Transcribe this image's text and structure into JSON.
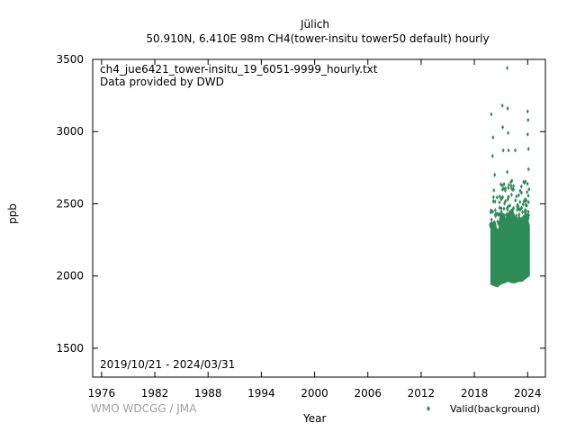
{
  "header": {
    "station": "Jülich",
    "subtitle": "50.910N, 6.410E 98m    CH4(tower-insitu tower50 default) hourly"
  },
  "plot_text": {
    "filename": "ch4_jue6421_tower-insitu_19_6051-9999_hourly.txt",
    "provider": "Data provided by DWD",
    "date_range": "2019/10/21 - 2024/03/31"
  },
  "footer": {
    "credit": "WMO WDCGG / JMA",
    "xlabel": "Year",
    "legend_label": "Valid(background)"
  },
  "colors": {
    "series": "#2e8b57",
    "credit": "#a0a0a0"
  },
  "chart_data": {
    "type": "scatter",
    "xlabel": "Year",
    "ylabel": "ppb",
    "xlim": [
      1975,
      2026
    ],
    "ylim": [
      1300,
      3500
    ],
    "xticks": [
      1976,
      1982,
      1988,
      1994,
      2000,
      2006,
      2012,
      2018,
      2024
    ],
    "yticks": [
      1500,
      2000,
      2500,
      3000,
      3500
    ],
    "grid": false,
    "legend_position": "bottom-right",
    "series": [
      {
        "name": "Valid(background)",
        "color": "#2e8b57",
        "x_range": [
          2019.8,
          2024.25
        ],
        "band": [
          {
            "x": 2019.8,
            "low": 1940,
            "high": 2330
          },
          {
            "x": 2020.2,
            "low": 1930,
            "high": 2350
          },
          {
            "x": 2020.6,
            "low": 1920,
            "high": 2300
          },
          {
            "x": 2021.0,
            "low": 1940,
            "high": 2420
          },
          {
            "x": 2021.4,
            "low": 1950,
            "high": 2400
          },
          {
            "x": 2021.8,
            "low": 1960,
            "high": 2380
          },
          {
            "x": 2022.2,
            "low": 1950,
            "high": 2420
          },
          {
            "x": 2022.6,
            "low": 1950,
            "high": 2380
          },
          {
            "x": 2023.0,
            "low": 1960,
            "high": 2400
          },
          {
            "x": 2023.4,
            "low": 1960,
            "high": 2380
          },
          {
            "x": 2023.8,
            "low": 1980,
            "high": 2450
          },
          {
            "x": 2024.25,
            "low": 2000,
            "high": 2350
          }
        ],
        "outliers": [
          {
            "x": 2019.9,
            "y": 3120
          },
          {
            "x": 2020.1,
            "y": 2960
          },
          {
            "x": 2020.05,
            "y": 2830
          },
          {
            "x": 2020.3,
            "y": 2700
          },
          {
            "x": 2021.15,
            "y": 3180
          },
          {
            "x": 2021.2,
            "y": 3030
          },
          {
            "x": 2021.25,
            "y": 2870
          },
          {
            "x": 2021.7,
            "y": 3440
          },
          {
            "x": 2021.75,
            "y": 3160
          },
          {
            "x": 2021.8,
            "y": 2990
          },
          {
            "x": 2021.85,
            "y": 2870
          },
          {
            "x": 2021.7,
            "y": 2720
          },
          {
            "x": 2022.1,
            "y": 2650
          },
          {
            "x": 2022.4,
            "y": 2600
          },
          {
            "x": 2022.6,
            "y": 2870
          },
          {
            "x": 2023.0,
            "y": 2560
          },
          {
            "x": 2023.3,
            "y": 2620
          },
          {
            "x": 2024.0,
            "y": 3140
          },
          {
            "x": 2024.05,
            "y": 3080
          },
          {
            "x": 2024.0,
            "y": 2980
          },
          {
            "x": 2024.1,
            "y": 2880
          },
          {
            "x": 2024.1,
            "y": 2740
          },
          {
            "x": 2024.15,
            "y": 2600
          }
        ]
      }
    ]
  }
}
